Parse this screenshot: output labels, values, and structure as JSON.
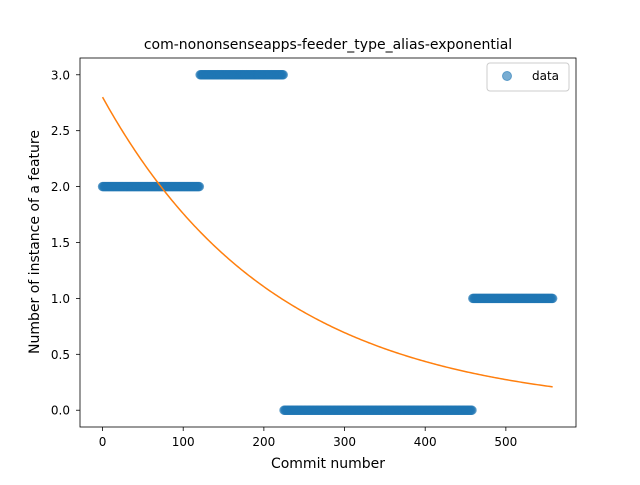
{
  "colors": {
    "data": "#1f77b4",
    "fit": "#ff7f0e",
    "background": "#ffffff",
    "axis": "#000000",
    "legend_border": "#cccccc"
  },
  "chart_data": {
    "type": "scatter",
    "title": "com-nononsenseapps-feeder_type_alias-exponential",
    "xlabel": "Commit number",
    "ylabel": "Number of instance of a feature",
    "xlim": [
      -27.95,
      586.95
    ],
    "ylim": [
      -0.15,
      3.15
    ],
    "xticks": [
      0,
      100,
      200,
      300,
      400,
      500
    ],
    "xtick_labels": [
      "0",
      "100",
      "200",
      "300",
      "400",
      "500"
    ],
    "yticks": [
      0.0,
      0.5,
      1.0,
      1.5,
      2.0,
      2.5,
      3.0
    ],
    "ytick_labels": [
      "0.0",
      "0.5",
      "1.0",
      "1.5",
      "2.0",
      "2.5",
      "3.0"
    ],
    "grid": false,
    "legend": {
      "position": "upper right",
      "entries": [
        "data"
      ]
    },
    "series": [
      {
        "name": "data",
        "kind": "scatter",
        "segments": [
          {
            "x_start": 0,
            "x_end": 120,
            "y": 2
          },
          {
            "x_start": 121,
            "x_end": 224,
            "y": 3
          },
          {
            "x_start": 225,
            "x_end": 458,
            "y": 0
          },
          {
            "x_start": 459,
            "x_end": 558,
            "y": 1
          }
        ]
      },
      {
        "kind": "line",
        "model": "exponential",
        "params": {
          "a": 2.8,
          "b": 0.00465
        },
        "x_range": [
          0,
          558
        ]
      }
    ]
  }
}
